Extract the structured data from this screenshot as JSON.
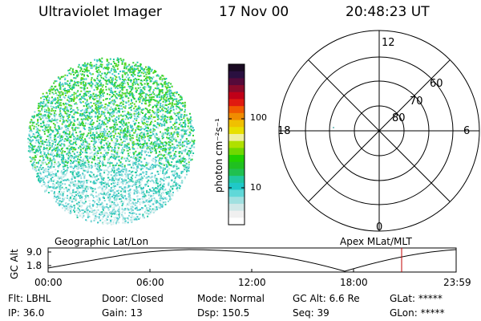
{
  "header": {
    "instrument": "Ultraviolet Imager",
    "date": "17 Nov 00",
    "time": "20:48:23 UT"
  },
  "colorbar": {
    "unit_label": "photon cm⁻²s⁻¹",
    "ticks": [
      "100",
      "10"
    ],
    "colors": [
      "#1a0a22",
      "#2a1040",
      "#550a3a",
      "#8a0a2a",
      "#c00018",
      "#e01a10",
      "#f05a00",
      "#f08c00",
      "#f0c000",
      "#e8e000",
      "#f0f0a0",
      "#b0e000",
      "#70d800",
      "#20d000",
      "#20c020",
      "#20c050",
      "#20c8a0",
      "#20c8c8",
      "#60d8d8",
      "#a0e0e0",
      "#d0e8e8",
      "#f0f0f0",
      "#ffffff"
    ]
  },
  "polar_plot": {
    "mlt_labels": {
      "top": "12",
      "left": "18",
      "right": "6",
      "bottom": "0"
    },
    "lat_labels": [
      "60",
      "70",
      "80"
    ]
  },
  "timeline": {
    "left_title": "Geographic Lat/Lon",
    "right_title": "Apex MLat/MLT",
    "y_axis_label": "GC Alt",
    "y_ticks": [
      "9.0",
      "1.8"
    ],
    "x_ticks": [
      "00:00",
      "06:00",
      "12:00",
      "18:00",
      "23:59"
    ]
  },
  "info": {
    "filter": "Flt: LBHL",
    "ip": "IP: 36.0",
    "door": "Door: Closed",
    "gain": "Gain: 13",
    "mode": "Mode: Normal",
    "dsp": "Dsp:  150.5",
    "gc_alt": "GC Alt: 6.6 Re",
    "seq": "Seq: 39",
    "glat": "GLat: *****",
    "glon": "GLon: *****"
  }
}
